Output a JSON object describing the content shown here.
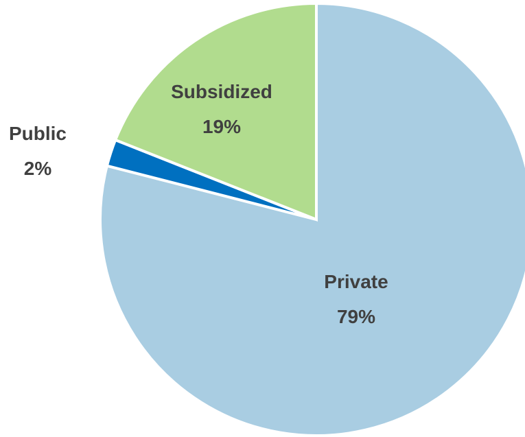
{
  "chart_data": {
    "type": "pie",
    "title": "",
    "start_angle_deg": 0,
    "direction": "clockwise",
    "slices": [
      {
        "label": "Private",
        "value": 79,
        "display": "79%",
        "color": "#A9CDE2"
      },
      {
        "label": "Public",
        "value": 2,
        "display": "2%",
        "color": "#0070C0"
      },
      {
        "label": "Subsidized",
        "value": 19,
        "display": "19%",
        "color": "#B1DC8E"
      }
    ]
  }
}
